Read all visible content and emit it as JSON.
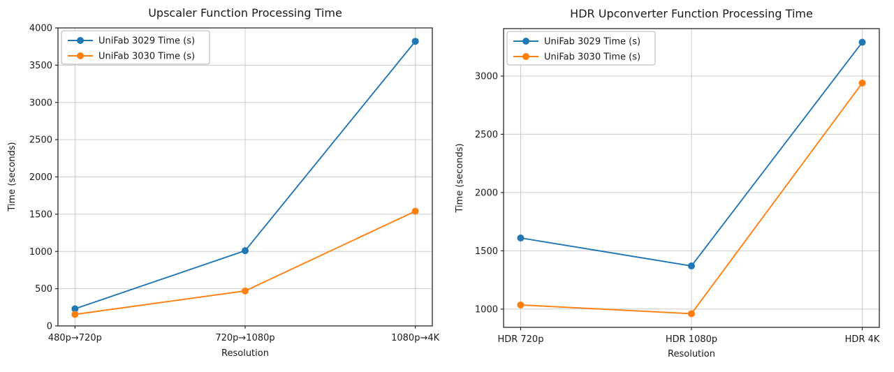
{
  "figure": {
    "background": "#ffffff",
    "text_color": "#1a1a1a",
    "grid_color": "#cccccc",
    "spine_color": "#262626"
  },
  "chart_data": [
    {
      "type": "line",
      "title": "Upscaler Function Processing Time",
      "xlabel": "Resolution",
      "ylabel": "Time (seconds)",
      "categories": [
        "480p→720p",
        "720p→1080p",
        "1080p→4K"
      ],
      "series": [
        {
          "name": "UniFab 3029 Time (s)",
          "color": "#1f77b4",
          "marker": "o",
          "values": [
            230,
            1010,
            3820
          ]
        },
        {
          "name": "UniFab 3030 Time (s)",
          "color": "#ff7f0e",
          "marker": "o",
          "values": [
            155,
            470,
            1540
          ]
        }
      ],
      "ylim": [
        0,
        4000
      ],
      "yticks": [
        0,
        500,
        1000,
        1500,
        2000,
        2500,
        3000,
        3500,
        4000
      ],
      "grid": true,
      "legend_position": "upper left"
    },
    {
      "type": "line",
      "title": "HDR Upconverter Function Processing Time",
      "xlabel": "Resolution",
      "ylabel": "Time (seconds)",
      "categories": [
        "HDR 720p",
        "HDR 1080p",
        "HDR 4K"
      ],
      "series": [
        {
          "name": "UniFab 3029 Time (s)",
          "color": "#1f77b4",
          "marker": "o",
          "values": [
            1610,
            1370,
            3290
          ]
        },
        {
          "name": "UniFab 3030 Time (s)",
          "color": "#ff7f0e",
          "marker": "o",
          "values": [
            1035,
            960,
            2940
          ]
        }
      ],
      "ylim": [
        843,
        3407
      ],
      "yticks": [
        1000,
        1500,
        2000,
        2500,
        3000
      ],
      "grid": true,
      "legend_position": "upper left"
    }
  ]
}
